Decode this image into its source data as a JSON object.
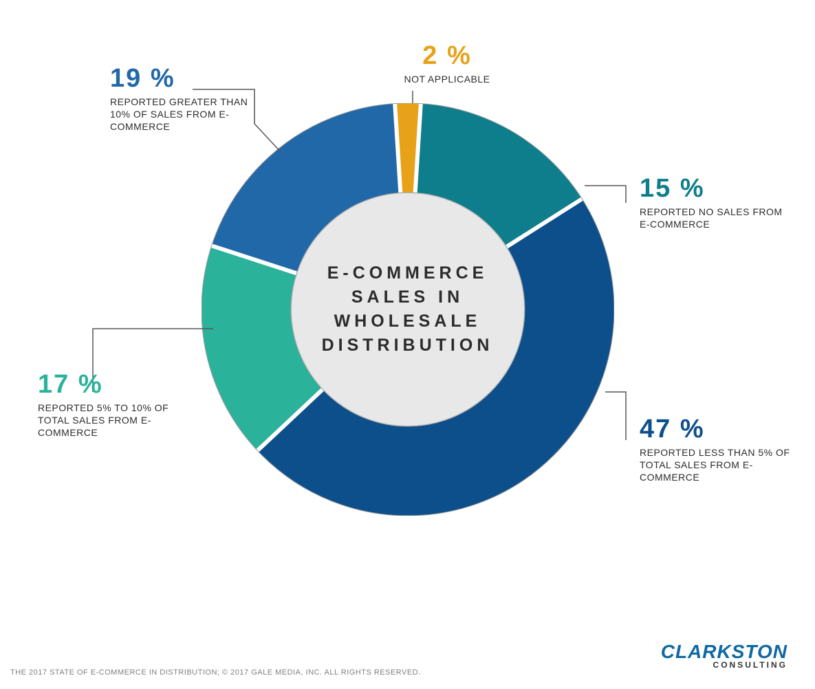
{
  "chart": {
    "type": "donut",
    "center_title": "E-COMMERCE SALES IN WHOLESALE DISTRIBUTION",
    "background_color": "#ffffff",
    "outer_radius": 300,
    "inner_radius": 170,
    "ring_border_color": "#9a9a9a",
    "center_bg_color": "#e8e8e8",
    "title_fontsize": 25,
    "title_letter_spacing": 6,
    "title_color": "#2b2b2b",
    "slices": [
      {
        "id": "not_applicable",
        "value": 2,
        "percent_label": "2 %",
        "label": "NOT APPLICABLE",
        "color": "#e8a219",
        "percent_color": "#e8a219"
      },
      {
        "id": "no_sales",
        "value": 15,
        "percent_label": "15 %",
        "label": "REPORTED NO SALES FROM E-COMMERCE",
        "color": "#0f7e8c",
        "percent_color": "#0f7e8c"
      },
      {
        "id": "less_5",
        "value": 47,
        "percent_label": "47 %",
        "label": "REPORTED LESS THAN 5% OF TOTAL SALES FROM E-COMMERCE",
        "color": "#0d4f8b",
        "percent_color": "#0d4f8b"
      },
      {
        "id": "five_to_ten",
        "value": 17,
        "percent_label": "17 %",
        "label": "REPORTED 5% TO 10% OF TOTAL SALES FROM E-COMMERCE",
        "color": "#2bb29a",
        "percent_color": "#2bb29a"
      },
      {
        "id": "greater_10",
        "value": 19,
        "percent_label": "19 %",
        "label": "REPORTED GREATER THAN 10% OF SALES FROM E-COMMERCE",
        "color": "#2168a8",
        "percent_color": "#2168a8"
      }
    ],
    "gap_width": 6,
    "start_angle_deg": -93.6,
    "callout_pct_fontsize": 38,
    "callout_text_fontsize": 14,
    "callout_text_color": "#2b2b2b",
    "leader_line_color": "#555555"
  },
  "footer": {
    "note": "THE 2017 STATE OF E-COMMERCE IN DISTRIBUTION; © 2017 GALE MEDIA, INC. ALL RIGHTS RESERVED.",
    "note_color": "#7f7f7f",
    "note_fontsize": 11
  },
  "logo": {
    "main": "CLARKSTON",
    "sub": "CONSULTING",
    "main_color": "#0f67a3",
    "sub_color": "#333333",
    "main_fontsize": 28,
    "sub_fontsize": 12
  }
}
